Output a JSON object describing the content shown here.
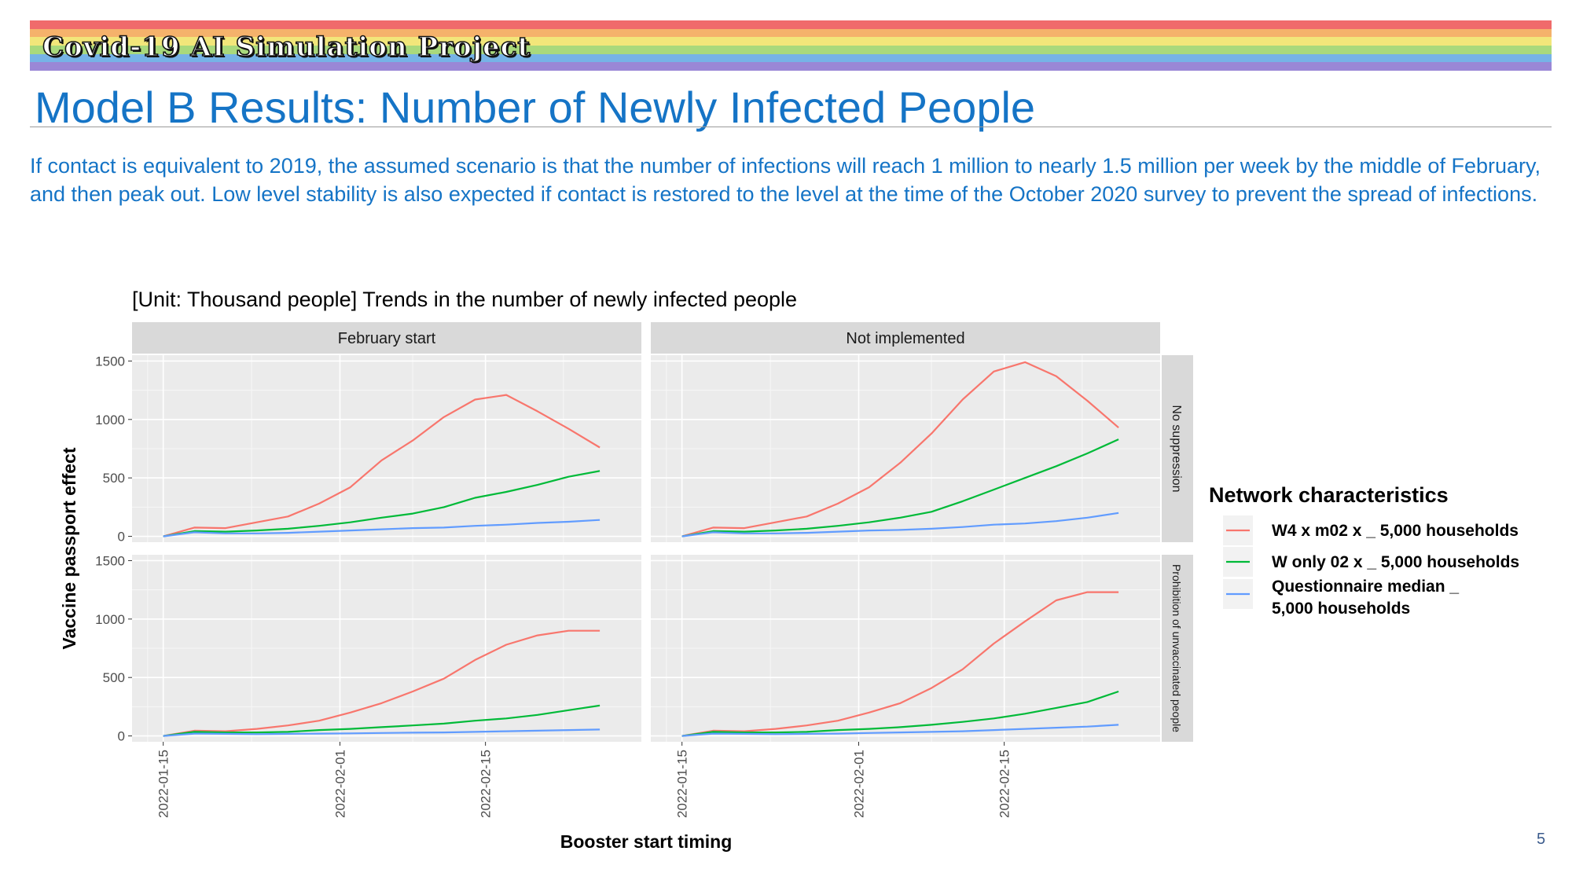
{
  "banner": {
    "title": "Covid-19 AI Simulation Project",
    "stripe_colors": [
      "#f06b6b",
      "#f5b26b",
      "#f2e67a",
      "#a9d97c",
      "#76b3e6",
      "#9a87d6"
    ]
  },
  "slide": {
    "title": "Model B Results: Number of Newly Infected People",
    "intro": "If contact is equivalent to 2019, the assumed scenario is that the number of infections will reach 1 million to nearly 1.5 million per week by the middle of February, and then peak out. Low level stability is also expected if contact is restored to the level at the time of the October 2020 survey to prevent the spread of infections.",
    "page_number": "5"
  },
  "chart_data": {
    "type": "line",
    "title": "[Unit: Thousand people] Trends in the number of newly infected people",
    "xlabel": "Booster start timing",
    "ylabel": "Vaccine passport effect",
    "ylim": [
      -50,
      1550
    ],
    "yticks": [
      0,
      500,
      1000,
      1500
    ],
    "xlim": [
      "2022-01-12",
      "2022-03-02"
    ],
    "xticks": [
      "2022-01-15",
      "2022-02-01",
      "2022-02-15"
    ],
    "x": [
      "2022-01-15",
      "2022-01-18",
      "2022-01-21",
      "2022-01-24",
      "2022-01-27",
      "2022-01-30",
      "2022-02-02",
      "2022-02-05",
      "2022-02-08",
      "2022-02-11",
      "2022-02-14",
      "2022-02-17",
      "2022-02-20",
      "2022-02-23",
      "2022-02-26"
    ],
    "facet_columns": [
      "February start",
      "Not implemented"
    ],
    "facet_rows": [
      "No suppression",
      "Prohibition of unvaccinated people"
    ],
    "legend": {
      "title": "Network characteristics",
      "position": "right",
      "entries": [
        {
          "label_lines": [
            "W4 x m02 x _ 5,000 households"
          ],
          "color": "#f8766d"
        },
        {
          "label_lines": [
            "W only 02 x _ 5,000 households"
          ],
          "color": "#00ba38"
        },
        {
          "label_lines": [
            "Questionnaire median _",
            "5,000 households"
          ],
          "color": "#619cff"
        }
      ]
    },
    "grid": true,
    "panels": [
      {
        "col": 0,
        "row": 0,
        "series": [
          {
            "color": "#f8766d",
            "values": [
              0,
              75,
              70,
              120,
              170,
              280,
              420,
              650,
              820,
              1020,
              1170,
              1210,
              1070,
              920,
              760
            ]
          },
          {
            "color": "#00ba38",
            "values": [
              0,
              45,
              40,
              50,
              65,
              90,
              120,
              160,
              195,
              250,
              330,
              380,
              440,
              510,
              560
            ]
          },
          {
            "color": "#619cff",
            "values": [
              0,
              35,
              25,
              25,
              30,
              40,
              50,
              60,
              70,
              75,
              90,
              100,
              115,
              125,
              140
            ]
          }
        ]
      },
      {
        "col": 1,
        "row": 0,
        "series": [
          {
            "color": "#f8766d",
            "values": [
              0,
              75,
              70,
              120,
              170,
              280,
              420,
              630,
              880,
              1170,
              1410,
              1490,
              1370,
              1160,
              930
            ]
          },
          {
            "color": "#00ba38",
            "values": [
              0,
              45,
              40,
              50,
              65,
              90,
              120,
              160,
              210,
              300,
              400,
              500,
              600,
              710,
              830
            ]
          },
          {
            "color": "#619cff",
            "values": [
              0,
              35,
              25,
              25,
              30,
              40,
              50,
              55,
              65,
              80,
              100,
              110,
              130,
              160,
              200
            ]
          }
        ]
      },
      {
        "col": 0,
        "row": 1,
        "series": [
          {
            "color": "#f8766d",
            "values": [
              0,
              45,
              40,
              60,
              90,
              130,
              200,
              280,
              380,
              490,
              650,
              780,
              860,
              900,
              900
            ]
          },
          {
            "color": "#00ba38",
            "values": [
              0,
              35,
              30,
              30,
              35,
              50,
              60,
              75,
              90,
              105,
              130,
              150,
              180,
              220,
              260
            ]
          },
          {
            "color": "#619cff",
            "values": [
              0,
              20,
              18,
              15,
              18,
              20,
              22,
              25,
              28,
              30,
              35,
              40,
              45,
              50,
              55
            ]
          }
        ]
      },
      {
        "col": 1,
        "row": 1,
        "series": [
          {
            "color": "#f8766d",
            "values": [
              0,
              45,
              40,
              60,
              90,
              130,
              200,
              280,
              410,
              570,
              790,
              980,
              1160,
              1230,
              1230
            ]
          },
          {
            "color": "#00ba38",
            "values": [
              0,
              35,
              30,
              30,
              35,
              50,
              60,
              75,
              95,
              120,
              150,
              190,
              240,
              290,
              380
            ]
          },
          {
            "color": "#619cff",
            "values": [
              0,
              20,
              18,
              15,
              18,
              20,
              25,
              30,
              35,
              40,
              50,
              60,
              70,
              80,
              95
            ]
          }
        ]
      }
    ]
  }
}
